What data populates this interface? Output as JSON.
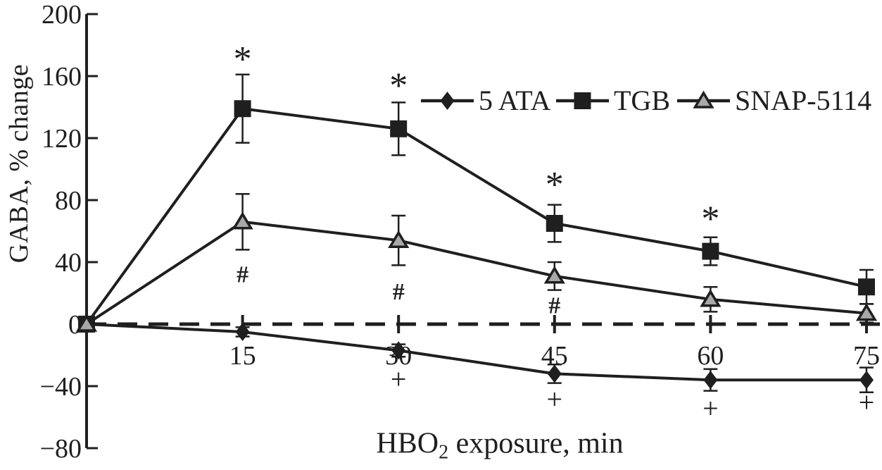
{
  "figure": {
    "background": "#ffffff",
    "ink_color": "#1f1f1f",
    "triangle_fill": "#a8a8a8"
  },
  "chart_data": {
    "type": "line",
    "title": "",
    "xlabel": "HBO2 exposure, min",
    "xlabel_parts": {
      "pre": "HBO",
      "sub": "2",
      "post": " exposure, min"
    },
    "ylabel": "GABA, % change",
    "xlim": [
      0,
      76.5
    ],
    "ylim": [
      -80,
      200
    ],
    "grid": false,
    "x": [
      0,
      15,
      30,
      45,
      60,
      75
    ],
    "x_ticks": [
      {
        "t": 15,
        "label": "15"
      },
      {
        "t": 30,
        "label": "30"
      },
      {
        "t": 45,
        "label": "45"
      },
      {
        "t": 60,
        "label": "60"
      },
      {
        "t": 75,
        "label": "75"
      }
    ],
    "y_ticks": [
      {
        "v": 200,
        "label": "200"
      },
      {
        "v": 160,
        "label": "160"
      },
      {
        "v": 120,
        "label": "120"
      },
      {
        "v": 80,
        "label": "80"
      },
      {
        "v": 40,
        "label": "40"
      },
      {
        "v": 0,
        "label": "0"
      },
      {
        "v": -40,
        "label": "−40"
      },
      {
        "v": -80,
        "label": "−80"
      }
    ],
    "zero_reference_line": {
      "value": 0,
      "style": "dashed"
    },
    "series": [
      {
        "name": "5 ATA",
        "marker": "diamond",
        "values": [
          0,
          -5,
          -17,
          -32,
          -36,
          -36
        ],
        "errors": [
          0,
          3,
          4,
          6,
          7,
          8
        ]
      },
      {
        "name": "TGB",
        "marker": "square",
        "values": [
          0,
          139,
          126,
          65,
          47,
          24
        ],
        "errors": [
          0,
          22,
          17,
          12,
          9,
          11
        ]
      },
      {
        "name": "SNAP-5114",
        "marker": "triangle",
        "values": [
          0,
          66,
          54,
          31,
          16,
          7
        ],
        "errors": [
          0,
          18,
          16,
          9,
          8,
          6
        ]
      }
    ],
    "annotations": [
      {
        "symbol": "*",
        "t": 15,
        "v": 175
      },
      {
        "symbol": "*",
        "t": 30,
        "v": 158
      },
      {
        "symbol": "*",
        "t": 45,
        "v": 94
      },
      {
        "symbol": "*",
        "t": 60,
        "v": 72
      },
      {
        "symbol": "#",
        "t": 15,
        "v": 32
      },
      {
        "symbol": "#",
        "t": 30,
        "v": 21
      },
      {
        "symbol": "#",
        "t": 45,
        "v": 12
      },
      {
        "symbol": "+",
        "t": 30,
        "v": -37
      },
      {
        "symbol": "+",
        "t": 45,
        "v": -50
      },
      {
        "symbol": "+",
        "t": 60,
        "v": -56
      },
      {
        "symbol": "+",
        "t": 75,
        "v": -52
      }
    ],
    "legend": {
      "position": "top-right-inside",
      "entries": [
        "5 ATA",
        "TGB",
        "SNAP-5114"
      ]
    }
  }
}
